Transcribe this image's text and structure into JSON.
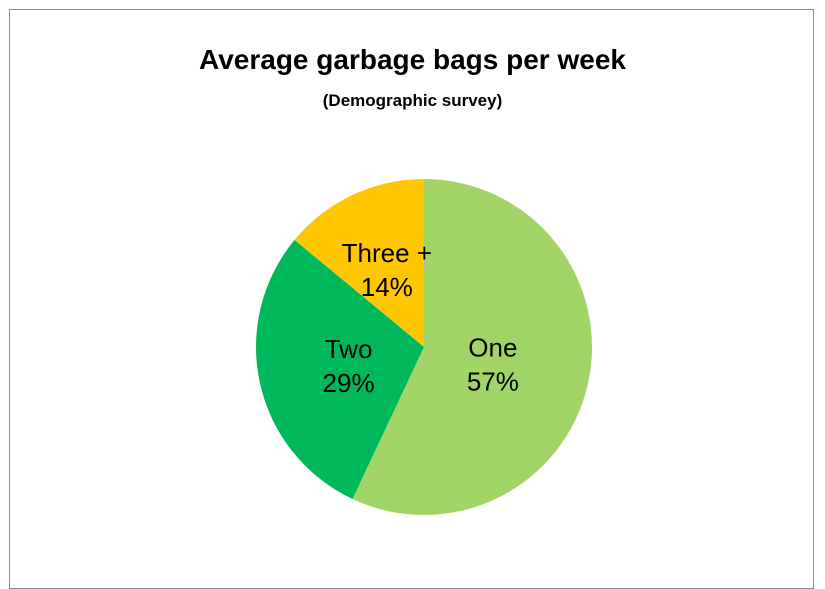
{
  "chart_data": {
    "type": "pie",
    "title": "Average garbage bags per week",
    "subtitle": "(Demographic survey)",
    "categories": [
      "One",
      "Two",
      "Three +"
    ],
    "values": [
      57,
      29,
      14
    ],
    "value_labels": [
      "57%",
      "29%",
      "14%"
    ],
    "colors": [
      "#a3d468",
      "#00b85c",
      "#ffc700"
    ],
    "legend": "none"
  }
}
